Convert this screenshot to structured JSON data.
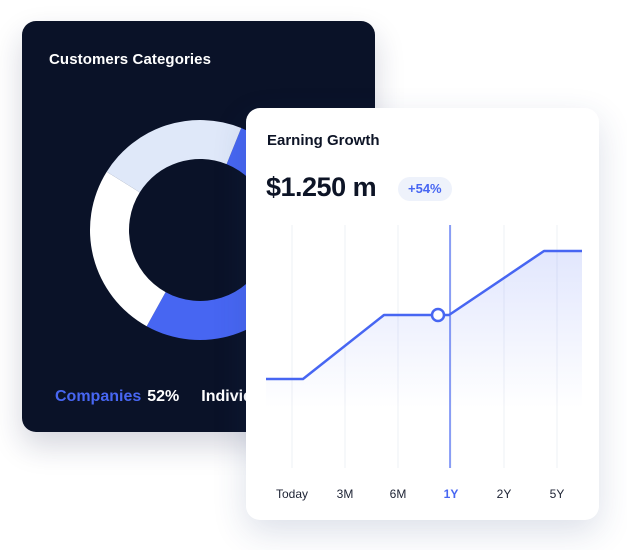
{
  "customers_card": {
    "title": "Customers Categories",
    "legend": {
      "companies_label": "Companies",
      "companies_value": "52%",
      "individuals_label": "Individuals"
    },
    "colors": {
      "background": "#0a1228",
      "companies": "#4766f2",
      "individuals": "#ffffff",
      "other": "#dfe8f9"
    }
  },
  "earning_card": {
    "title": "Earning Growth",
    "amount": "$1.250 m",
    "change_badge": "+54%",
    "accent_color": "#4766f2",
    "periods": [
      "Today",
      "3M",
      "6M",
      "1Y",
      "2Y",
      "5Y"
    ],
    "selected_period": "1Y"
  }
}
